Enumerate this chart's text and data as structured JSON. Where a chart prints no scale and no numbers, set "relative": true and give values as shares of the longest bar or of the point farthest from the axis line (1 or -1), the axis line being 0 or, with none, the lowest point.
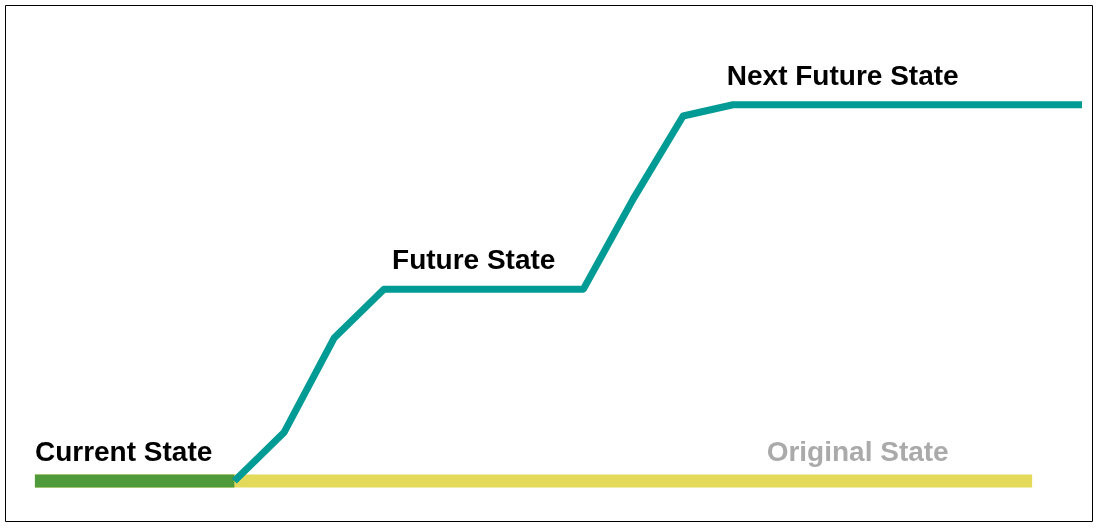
{
  "chart_data": {
    "type": "line",
    "relative": true,
    "categories": [
      null,
      null,
      null,
      null,
      null,
      null,
      null,
      null,
      null,
      null,
      null,
      null,
      null,
      null,
      null,
      null,
      null,
      null,
      null,
      null,
      null,
      null
    ],
    "series": [
      {
        "color": "#009b94",
        "values": [
          null,
          null,
          null,
          null,
          0,
          0.13,
          0.38,
          0.51,
          0.51,
          0.51,
          0.51,
          0.51,
          0.75,
          0.97,
          1,
          1,
          1,
          1,
          1,
          1,
          1,
          1
        ]
      }
    ],
    "ref_lines": [
      {
        "axis": "y",
        "value": 0,
        "label": "Original State",
        "color": "#e3d95a"
      },
      {
        "axis": "y",
        "value": 0,
        "label": "Current State",
        "color": "#4f9a3a"
      }
    ],
    "annotations": [
      {
        "text": "Future State",
        "y": 0.51
      },
      {
        "text": "Next Future State",
        "y": 1
      }
    ],
    "grid": false,
    "marker": "none",
    "line_style": "solid"
  }
}
